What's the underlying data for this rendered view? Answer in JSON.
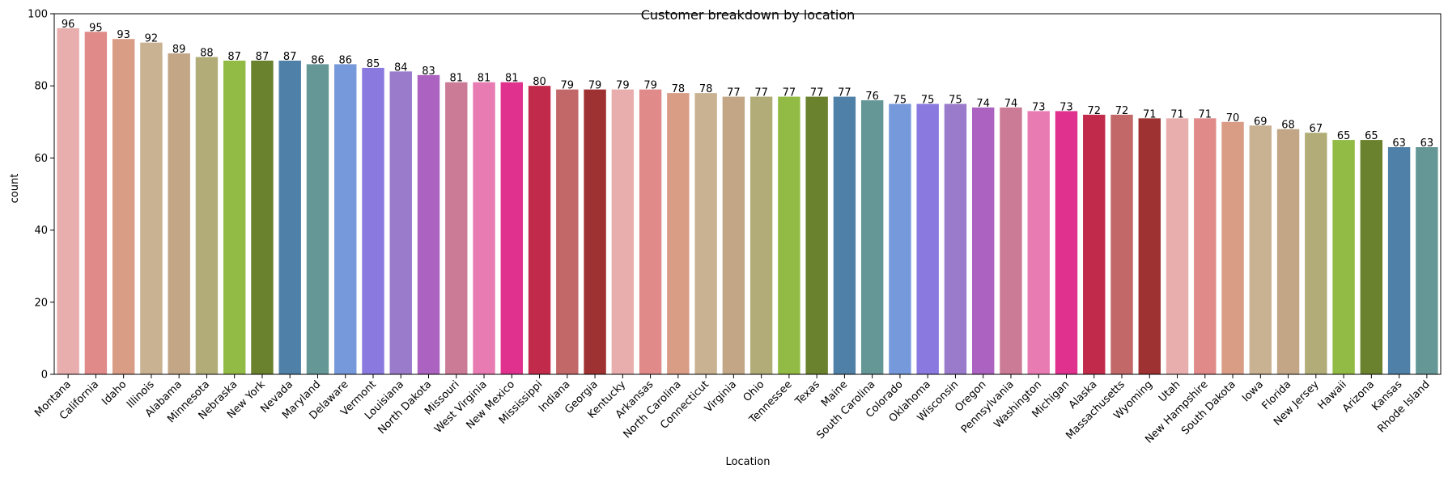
{
  "chart_data": {
    "type": "bar",
    "title": "Customer breakdown by location",
    "xlabel": "Location",
    "ylabel": "count",
    "ylim": [
      0,
      100
    ],
    "yticks": [
      0,
      20,
      40,
      60,
      80,
      100
    ],
    "grid": false,
    "categories": [
      "Montana",
      "California",
      "Idaho",
      "Illinois",
      "Alabama",
      "Minnesota",
      "Nebraska",
      "New York",
      "Nevada",
      "Maryland",
      "Delaware",
      "Vermont",
      "Louisiana",
      "North Dakota",
      "Missouri",
      "West Virginia",
      "New Mexico",
      "Mississippi",
      "Indiana",
      "Georgia",
      "Kentucky",
      "Arkansas",
      "North Carolina",
      "Connecticut",
      "Virginia",
      "Ohio",
      "Tennessee",
      "Texas",
      "Maine",
      "South Carolina",
      "Colorado",
      "Oklahoma",
      "Wisconsin",
      "Oregon",
      "Pennsylvania",
      "Washington",
      "Michigan",
      "Alaska",
      "Massachusetts",
      "Wyoming",
      "Utah",
      "New Hampshire",
      "South Dakota",
      "Iowa",
      "Florida",
      "New Jersey",
      "Hawaii",
      "Arizona",
      "Kansas",
      "Rhode Island"
    ],
    "values": [
      96,
      95,
      93,
      92,
      89,
      88,
      87,
      87,
      87,
      86,
      86,
      85,
      84,
      83,
      81,
      81,
      81,
      80,
      79,
      79,
      79,
      79,
      78,
      78,
      77,
      77,
      77,
      77,
      77,
      76,
      75,
      75,
      75,
      74,
      74,
      73,
      73,
      72,
      72,
      71,
      71,
      71,
      70,
      69,
      68,
      67,
      65,
      65,
      63,
      63
    ],
    "palette": [
      "#e8aeae",
      "#e08a8a",
      "#d99c85",
      "#c9b291",
      "#c2a686",
      "#b2ad78",
      "#92bb45",
      "#6a822e",
      "#4f81a8",
      "#659796",
      "#7599da",
      "#8a79de",
      "#9a7bcb",
      "#ac62c0",
      "#cc7b97",
      "#e87bb2",
      "#e0318e",
      "#c22a4b",
      "#c26868",
      "#9e3131"
    ]
  }
}
